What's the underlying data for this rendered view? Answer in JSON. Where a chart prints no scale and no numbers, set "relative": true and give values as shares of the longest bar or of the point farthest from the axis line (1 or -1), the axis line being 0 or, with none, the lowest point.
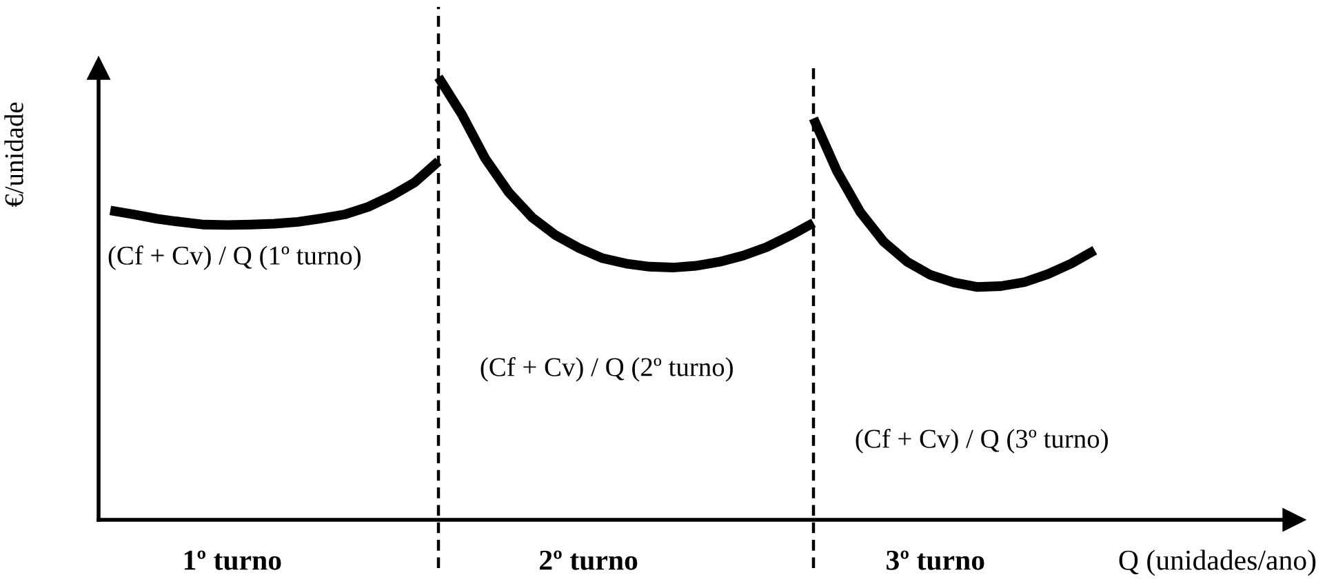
{
  "chart_data": {
    "type": "line",
    "relative": true,
    "xlabel": "Q (unidades/ano)",
    "ylabel": "€/unidade",
    "categories": [
      null,
      null,
      null,
      null,
      null,
      null,
      null,
      null,
      null,
      null,
      null,
      null,
      null,
      null,
      null,
      null,
      null,
      null,
      null,
      null,
      null,
      null,
      null,
      null,
      null,
      null,
      null,
      null,
      null,
      null,
      null,
      null,
      null,
      null,
      null,
      null,
      null,
      null,
      null,
      null,
      null,
      null,
      null,
      null,
      null,
      null,
      null,
      null,
      null,
      null,
      null
    ],
    "series": [
      {
        "color": "#000000",
        "values": [
          0.699,
          0.69,
          0.68,
          0.673,
          0.667,
          0.666,
          0.667,
          0.669,
          0.673,
          0.681,
          0.69,
          0.707,
          0.732,
          0.763,
          0.81,
          null,
          null,
          null,
          null,
          null,
          null,
          null,
          null,
          null,
          null,
          null,
          null,
          null,
          null,
          null,
          null,
          null,
          null,
          null,
          null,
          null,
          null,
          null,
          null,
          null,
          null,
          null,
          null,
          null,
          null,
          null,
          null,
          null,
          null,
          null,
          null
        ]
      },
      {
        "color": "#000000",
        "values": [
          null,
          null,
          null,
          null,
          null,
          null,
          null,
          null,
          null,
          null,
          null,
          null,
          null,
          null,
          1.0,
          0.916,
          0.816,
          0.74,
          0.683,
          0.643,
          0.614,
          0.591,
          0.579,
          0.572,
          0.57,
          0.574,
          0.583,
          0.597,
          0.616,
          0.642,
          0.671,
          null,
          null,
          null,
          null,
          null,
          null,
          null,
          null,
          null,
          null,
          null,
          null,
          null,
          null,
          null,
          null,
          null,
          null,
          null,
          null
        ]
      },
      {
        "color": "#000000",
        "values": [
          null,
          null,
          null,
          null,
          null,
          null,
          null,
          null,
          null,
          null,
          null,
          null,
          null,
          null,
          null,
          null,
          null,
          null,
          null,
          null,
          null,
          null,
          null,
          null,
          null,
          null,
          null,
          null,
          null,
          null,
          0.907,
          0.788,
          0.695,
          0.628,
          0.583,
          0.553,
          0.536,
          0.526,
          0.528,
          0.537,
          0.555,
          0.579,
          0.609,
          null,
          null,
          null,
          null,
          null,
          null,
          null,
          null
        ]
      }
    ],
    "annotations": [
      "(Cf + Cv) / Q (1º turno)",
      "(Cf + Cv) / Q (2º turno)",
      "(Cf + Cv) / Q (3º turno)",
      "1º turno",
      "2º turno",
      "3º turno"
    ]
  }
}
